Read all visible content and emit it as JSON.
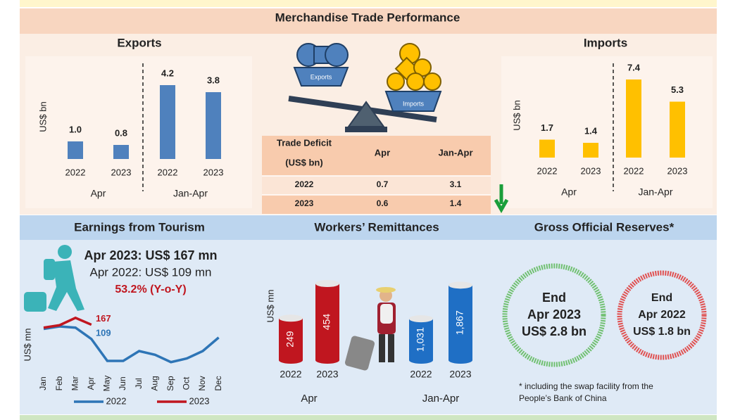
{
  "page_title": "Merchandise Trade Performance",
  "scale_graphic": {
    "left": "Exports",
    "right": "Imports"
  },
  "trade_deficit": {
    "header": [
      "Trade Deficit",
      "(US$ bn)",
      "Apr",
      "Jan-Apr"
    ],
    "rows": [
      [
        "2022",
        "0.7",
        "3.1"
      ],
      [
        "2023",
        "0.6",
        "1.4"
      ]
    ]
  },
  "chart_data": [
    {
      "type": "bar",
      "title": "Exports",
      "y_label": "US$ bn",
      "color": "#4f81bd",
      "categories": [
        "2022",
        "2023",
        "2022",
        "2023"
      ],
      "groups": [
        "Apr",
        "Jan-Apr"
      ],
      "values": [
        1.0,
        0.8,
        4.2,
        3.8
      ],
      "value_labels": [
        "1.0",
        "0.8",
        "4.2",
        "3.8"
      ],
      "ylim": [
        0,
        5
      ]
    },
    {
      "type": "bar",
      "title": "Imports",
      "y_label": "US$ bn",
      "color": "#ffc000",
      "categories": [
        "2022",
        "2023",
        "2022",
        "2023"
      ],
      "groups": [
        "Apr",
        "Jan-Apr"
      ],
      "values": [
        1.7,
        1.4,
        7.4,
        5.3
      ],
      "ylim": [
        0,
        8
      ]
    },
    {
      "type": "line",
      "title": "Earnings from Tourism",
      "y_label": "US$ mn",
      "headline": [
        "Apr 2023: US$ 167 mn",
        "Apr 2022: US$ 109 mn",
        "53.2% (Y-o-Y)"
      ],
      "categories": [
        "Jan",
        "Feb",
        "Mar",
        "Apr",
        "May",
        "Jun",
        "Jul",
        "Aug",
        "Sep",
        "Oct",
        "Nov",
        "Dec"
      ],
      "series": [
        {
          "name": "2022",
          "color": "#2e75b6",
          "values": [
            150,
            160,
            155,
            109,
            20,
            20,
            60,
            45,
            15,
            30,
            60,
            115
          ]
        },
        {
          "name": "2023",
          "color": "#c0161f",
          "values": [
            155,
            165,
            195,
            167,
            null,
            null,
            null,
            null,
            null,
            null,
            null,
            null
          ]
        }
      ],
      "annotations": [
        {
          "text": "167",
          "series": 1,
          "index": 3
        },
        {
          "text": "109",
          "series": 0,
          "index": 3
        }
      ],
      "ylim": [
        0,
        220
      ]
    },
    {
      "type": "cylinder",
      "title": "Workers’ Remittances",
      "y_label": "US$ mn",
      "group": "Apr",
      "color": "#c0161f",
      "categories": [
        "2022",
        "2023"
      ],
      "values": [
        249,
        454
      ],
      "ylim": [
        0,
        500
      ]
    },
    {
      "type": "cylinder",
      "group": "Jan-Apr",
      "color": "#1f6fc5",
      "categories": [
        "2022",
        "2023"
      ],
      "values": [
        1031,
        1867
      ],
      "value_labels": [
        "1,031",
        "1,867"
      ],
      "ylim": [
        0,
        2100
      ]
    }
  ],
  "reserves": {
    "title": "Gross Official Reserves*",
    "circles": [
      {
        "lines": [
          "End",
          "Apr 2023",
          "US$ 2.8 bn"
        ],
        "color": "#70c070"
      },
      {
        "lines": [
          "End",
          "Apr 2022",
          "US$ 1.8 bn"
        ],
        "color": "#e05050"
      }
    ],
    "footnote": [
      "* including the swap facility from the",
      "People’s Bank of China"
    ]
  }
}
